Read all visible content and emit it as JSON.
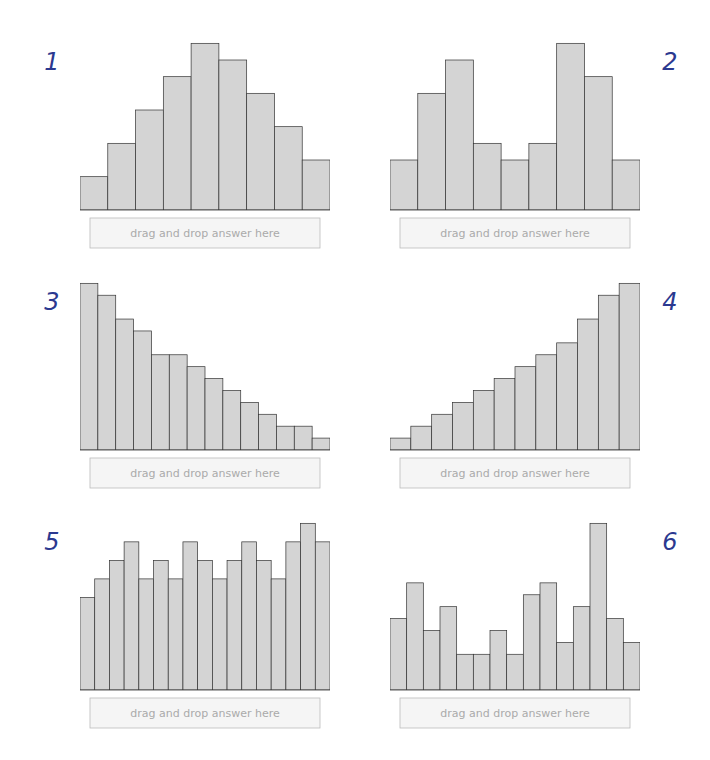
{
  "chart_data": [
    {
      "type": "bar",
      "title": "1",
      "annotations": [
        "drag and drop answer here"
      ],
      "categories": [
        null,
        null,
        null,
        null,
        null,
        null,
        null,
        null,
        null
      ],
      "values": [
        2,
        4,
        6,
        8,
        10,
        9,
        7,
        5,
        3
      ],
      "color": "#d4d4d4",
      "ylim": [
        0,
        10.2
      ],
      "tick_labels": false,
      "grid": false
    },
    {
      "type": "bar",
      "title": "2",
      "annotations": [
        "drag and drop answer here"
      ],
      "categories": [
        null,
        null,
        null,
        null,
        null,
        null,
        null,
        null,
        null
      ],
      "values": [
        3,
        7,
        9,
        4,
        3,
        4,
        10,
        8,
        3
      ],
      "color": "#d4d4d4",
      "ylim": [
        0,
        10.2
      ],
      "tick_labels": false,
      "grid": false
    },
    {
      "type": "bar",
      "title": "3",
      "annotations": [
        "drag and drop answer here"
      ],
      "categories": [
        null,
        null,
        null,
        null,
        null,
        null,
        null,
        null,
        null,
        null,
        null,
        null,
        null,
        null
      ],
      "values": [
        14,
        13,
        11,
        10,
        8,
        8,
        7,
        6,
        5,
        4,
        3,
        2,
        2,
        1
      ],
      "color": "#d4d4d4",
      "ylim": [
        0,
        14.28
      ],
      "tick_labels": false,
      "grid": false
    },
    {
      "type": "bar",
      "title": "4",
      "annotations": [
        "drag and drop answer here"
      ],
      "categories": [
        null,
        null,
        null,
        null,
        null,
        null,
        null,
        null,
        null,
        null,
        null,
        null
      ],
      "values": [
        1,
        2,
        3,
        4,
        5,
        6,
        7,
        8,
        9,
        11,
        13,
        14
      ],
      "color": "#d4d4d4",
      "ylim": [
        0,
        14.28
      ],
      "tick_labels": false,
      "grid": false
    },
    {
      "type": "bar",
      "title": "5",
      "annotations": [
        "drag and drop answer here"
      ],
      "categories": [
        null,
        null,
        null,
        null,
        null,
        null,
        null,
        null,
        null,
        null,
        null,
        null,
        null,
        null,
        null,
        null,
        null
      ],
      "values": [
        5,
        6,
        7,
        8,
        6,
        7,
        6,
        8,
        7,
        6,
        7,
        8,
        7,
        6,
        8,
        9,
        8
      ],
      "color": "#d4d4d4",
      "ylim": [
        0,
        9.18
      ],
      "tick_labels": false,
      "grid": false
    },
    {
      "type": "bar",
      "title": "6",
      "annotations": [
        "drag and drop answer here"
      ],
      "categories": [
        null,
        null,
        null,
        null,
        null,
        null,
        null,
        null,
        null,
        null,
        null,
        null,
        null,
        null,
        null
      ],
      "values": [
        6,
        9,
        5,
        7,
        3,
        3,
        5,
        3,
        8,
        9,
        4,
        7,
        14,
        6,
        4
      ],
      "color": "#d4d4d4",
      "ylim": [
        0,
        14.28
      ],
      "tick_labels": false,
      "grid": false
    }
  ]
}
